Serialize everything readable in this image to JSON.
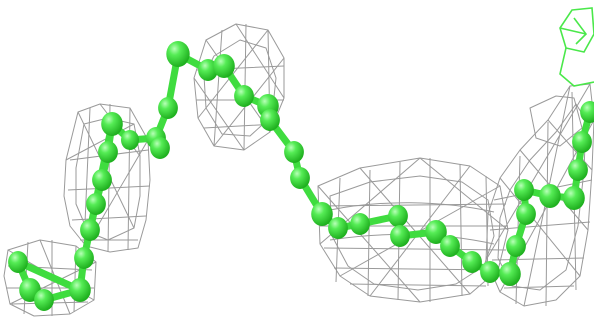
{
  "scene": {
    "background": "#ffffff",
    "mesh_color": "#9a9a9a",
    "mesh_color_light": "#c4c4c4",
    "bond_color": "#3fdc3f",
    "atom_color": "#3de23d",
    "atom_highlight": "#8ff58f",
    "atom_shadow": "#22b822",
    "ligand_color": "#4ae84a"
  }
}
